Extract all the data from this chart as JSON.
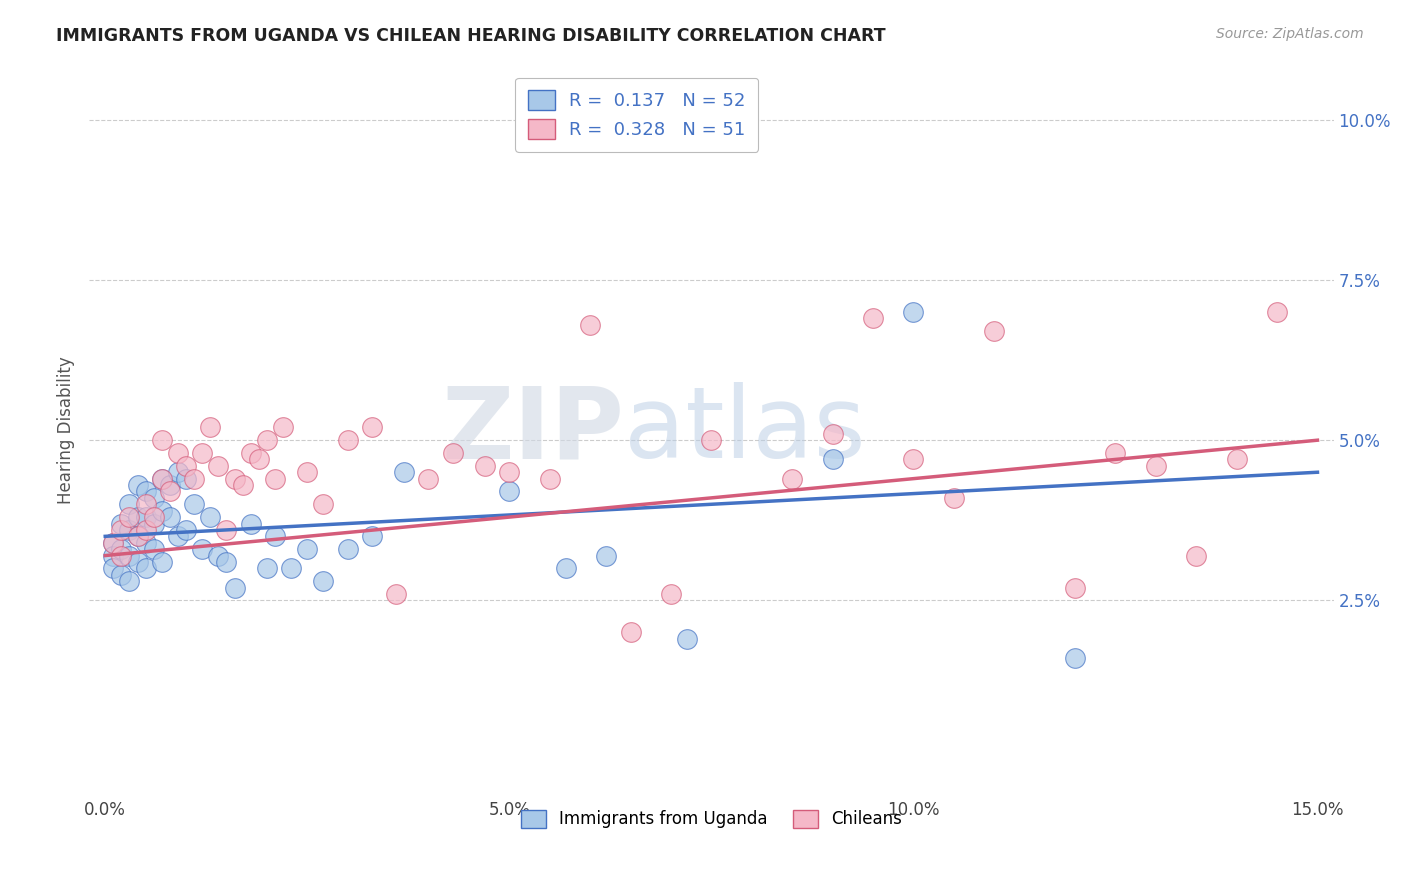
{
  "title": "IMMIGRANTS FROM UGANDA VS CHILEAN HEARING DISABILITY CORRELATION CHART",
  "source": "Source: ZipAtlas.com",
  "ylabel": "Hearing Disability",
  "xlim": [
    -0.002,
    0.152
  ],
  "ylim": [
    -0.005,
    0.108
  ],
  "xticks": [
    0.0,
    0.05,
    0.1,
    0.15
  ],
  "xtick_labels": [
    "0.0%",
    "5.0%",
    "10.0%",
    "15.0%"
  ],
  "yticks": [
    0.025,
    0.05,
    0.075,
    0.1
  ],
  "ytick_labels": [
    "2.5%",
    "5.0%",
    "7.5%",
    "10.0%"
  ],
  "color_blue": "#a8c8e8",
  "color_pink": "#f5b8c8",
  "line_color_blue": "#4472c4",
  "line_color_pink": "#d45c7a",
  "watermark_zip": "ZIP",
  "watermark_atlas": "atlas",
  "blue_x": [
    0.001,
    0.001,
    0.001,
    0.002,
    0.002,
    0.002,
    0.003,
    0.003,
    0.003,
    0.003,
    0.004,
    0.004,
    0.004,
    0.004,
    0.005,
    0.005,
    0.005,
    0.005,
    0.006,
    0.006,
    0.006,
    0.007,
    0.007,
    0.007,
    0.008,
    0.008,
    0.009,
    0.009,
    0.01,
    0.01,
    0.011,
    0.012,
    0.013,
    0.014,
    0.015,
    0.016,
    0.018,
    0.02,
    0.021,
    0.023,
    0.025,
    0.027,
    0.03,
    0.033,
    0.037,
    0.05,
    0.057,
    0.062,
    0.072,
    0.09,
    0.1,
    0.12
  ],
  "blue_y": [
    0.034,
    0.032,
    0.03,
    0.037,
    0.033,
    0.029,
    0.04,
    0.036,
    0.032,
    0.028,
    0.043,
    0.038,
    0.035,
    0.031,
    0.042,
    0.038,
    0.034,
    0.03,
    0.041,
    0.037,
    0.033,
    0.044,
    0.039,
    0.031,
    0.043,
    0.038,
    0.045,
    0.035,
    0.044,
    0.036,
    0.04,
    0.033,
    0.038,
    0.032,
    0.031,
    0.027,
    0.037,
    0.03,
    0.035,
    0.03,
    0.033,
    0.028,
    0.033,
    0.035,
    0.045,
    0.042,
    0.03,
    0.032,
    0.019,
    0.047,
    0.07,
    0.016
  ],
  "pink_x": [
    0.001,
    0.002,
    0.002,
    0.003,
    0.004,
    0.005,
    0.005,
    0.006,
    0.007,
    0.007,
    0.008,
    0.009,
    0.01,
    0.011,
    0.012,
    0.013,
    0.014,
    0.015,
    0.016,
    0.017,
    0.018,
    0.019,
    0.02,
    0.021,
    0.022,
    0.025,
    0.027,
    0.03,
    0.033,
    0.036,
    0.04,
    0.043,
    0.047,
    0.05,
    0.055,
    0.06,
    0.065,
    0.07,
    0.075,
    0.085,
    0.09,
    0.095,
    0.1,
    0.105,
    0.11,
    0.12,
    0.125,
    0.13,
    0.135,
    0.14,
    0.145
  ],
  "pink_y": [
    0.034,
    0.032,
    0.036,
    0.038,
    0.035,
    0.04,
    0.036,
    0.038,
    0.044,
    0.05,
    0.042,
    0.048,
    0.046,
    0.044,
    0.048,
    0.052,
    0.046,
    0.036,
    0.044,
    0.043,
    0.048,
    0.047,
    0.05,
    0.044,
    0.052,
    0.045,
    0.04,
    0.05,
    0.052,
    0.026,
    0.044,
    0.048,
    0.046,
    0.045,
    0.044,
    0.068,
    0.02,
    0.026,
    0.05,
    0.044,
    0.051,
    0.069,
    0.047,
    0.041,
    0.067,
    0.027,
    0.048,
    0.046,
    0.032,
    0.047,
    0.07
  ]
}
